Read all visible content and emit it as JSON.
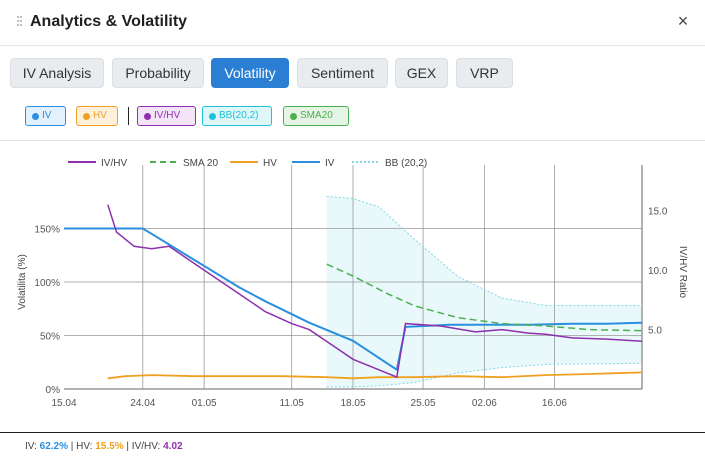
{
  "header": {
    "title": "Analytics & Volatility",
    "close_icon": "×"
  },
  "tabs": [
    {
      "label": "IV Analysis",
      "active": false
    },
    {
      "label": "Probability",
      "active": false
    },
    {
      "label": "Volatility",
      "active": true
    },
    {
      "label": "Sentiment",
      "active": false
    },
    {
      "label": "GEX",
      "active": false
    },
    {
      "label": "VRP",
      "active": false
    }
  ],
  "toggles": [
    {
      "label": "IV",
      "color": "#2a8fe0",
      "bg": "#e3f1fc"
    },
    {
      "label": "HV",
      "color": "#f0a020",
      "bg": "#fdf1de"
    },
    {
      "label": "IV/HV",
      "color": "#8e2fb0",
      "bg": "#f3e5f7"
    },
    {
      "label": "BB(20,2)",
      "color": "#1fc2d6",
      "bg": "#e0f7fa"
    },
    {
      "label": "SMA20",
      "color": "#4caf50",
      "bg": "#e6f4e6"
    }
  ],
  "chart_data": {
    "type": "line",
    "legend": [
      "IV/HV",
      "SMA 20",
      "HV",
      "IV",
      "BB (20,2)"
    ],
    "ylabel": "Volatilita (%)",
    "y2label": "IV/HV Ratio",
    "xticks": [
      "15.04",
      "24.04",
      "01.05",
      "11.05",
      "18.05",
      "25.05",
      "02.06",
      "16.06"
    ],
    "yticks": [
      "0%",
      "50%",
      "100%",
      "150%"
    ],
    "y2ticks": [
      "5.0",
      "10.0",
      "15.0"
    ],
    "ylim": [
      0,
      200
    ],
    "y2lim": [
      0,
      18
    ],
    "colors": {
      "iv": "#2a8fe0",
      "hv": "#f0a020",
      "ivhv": "#8e2fb0",
      "sma": "#4caf50",
      "bb": "#7fd8e4"
    },
    "series": {
      "iv": [
        [
          0,
          150
        ],
        [
          9,
          150
        ],
        [
          10,
          145
        ],
        [
          20,
          95
        ],
        [
          23,
          82
        ],
        [
          28,
          62
        ],
        [
          33,
          45
        ],
        [
          38,
          18
        ],
        [
          39,
          58
        ],
        [
          44,
          60
        ],
        [
          48,
          60
        ],
        [
          53,
          60
        ],
        [
          58,
          61
        ],
        [
          62,
          61
        ],
        [
          66,
          62
        ]
      ],
      "hv": [
        [
          5,
          10
        ],
        [
          7,
          12
        ],
        [
          10,
          13
        ],
        [
          15,
          12
        ],
        [
          20,
          12
        ],
        [
          25,
          12
        ],
        [
          30,
          11
        ],
        [
          33,
          10
        ],
        [
          36,
          11
        ],
        [
          40,
          11
        ],
        [
          45,
          12
        ],
        [
          50,
          11
        ],
        [
          55,
          13
        ],
        [
          60,
          14
        ],
        [
          66,
          15.5
        ]
      ],
      "ivhv": [
        [
          5,
          15.5
        ],
        [
          6,
          13.2
        ],
        [
          8,
          12
        ],
        [
          9,
          11.9
        ],
        [
          10,
          11.8
        ],
        [
          12,
          12
        ],
        [
          14,
          11
        ],
        [
          16,
          10
        ],
        [
          18,
          9
        ],
        [
          20,
          8
        ],
        [
          23,
          6.5
        ],
        [
          26,
          5.5
        ],
        [
          28,
          5
        ],
        [
          31,
          3.5
        ],
        [
          33,
          2.5
        ],
        [
          38,
          1
        ],
        [
          39,
          5.5
        ],
        [
          43,
          5.3
        ],
        [
          47,
          4.8
        ],
        [
          50,
          5
        ],
        [
          53,
          4.7
        ],
        [
          55,
          4.6
        ],
        [
          58,
          4.3
        ],
        [
          62,
          4.2
        ],
        [
          66,
          4.02
        ]
      ],
      "sma": [
        [
          30,
          10.5
        ],
        [
          33,
          9.5
        ],
        [
          37,
          8
        ],
        [
          40,
          7
        ],
        [
          45,
          6
        ],
        [
          50,
          5.5
        ],
        [
          55,
          5.3
        ],
        [
          60,
          5
        ],
        [
          66,
          4.9
        ]
      ],
      "bb_upper": [
        [
          30,
          180
        ],
        [
          33,
          178
        ],
        [
          36,
          170
        ],
        [
          40,
          140
        ],
        [
          45,
          105
        ],
        [
          50,
          85
        ],
        [
          55,
          78
        ],
        [
          66,
          78
        ]
      ],
      "bb_lower": [
        [
          30,
          2
        ],
        [
          33,
          2
        ],
        [
          36,
          3
        ],
        [
          40,
          6
        ],
        [
          45,
          15
        ],
        [
          50,
          20
        ],
        [
          55,
          23
        ],
        [
          66,
          24
        ]
      ]
    },
    "x_ticks_pos": [
      0,
      9,
      16,
      26,
      33,
      41,
      48,
      56
    ]
  },
  "footer": {
    "iv_label": "IV:",
    "iv_value": "62.2%",
    "hv_label": "HV:",
    "hv_value": "15.5%",
    "ratio_label": "IV/HV:",
    "ratio_value": "4.02"
  }
}
